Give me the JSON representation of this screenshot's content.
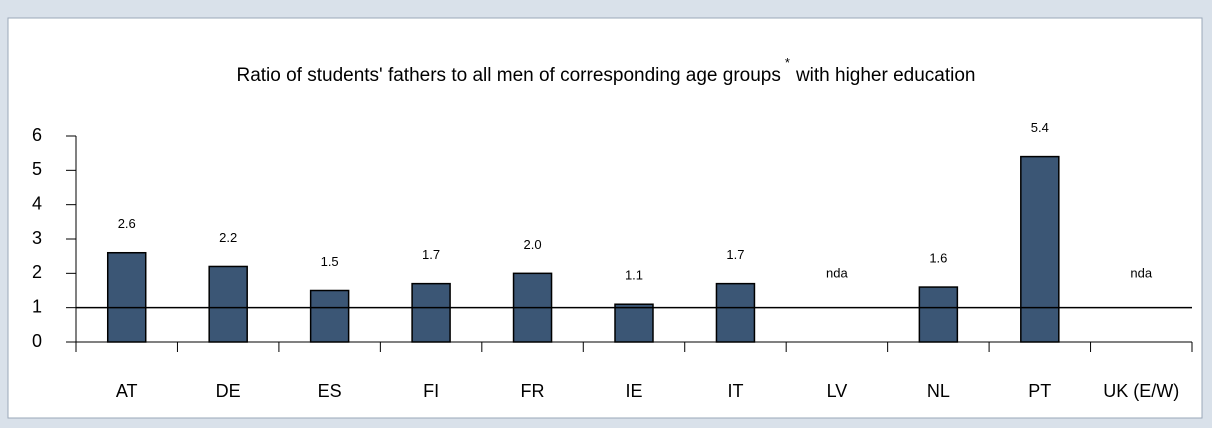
{
  "chart_data": {
    "type": "bar",
    "title_parts": [
      "Ratio of students' fathers to all men of corresponding age groups",
      "*",
      "with higher education"
    ],
    "categories": [
      "AT",
      "DE",
      "ES",
      "FI",
      "FR",
      "IE",
      "IT",
      "LV",
      "NL",
      "PT",
      "UK (E/W)"
    ],
    "values": [
      2.6,
      2.2,
      1.5,
      1.7,
      2.0,
      1.1,
      1.7,
      null,
      1.6,
      5.4,
      null
    ],
    "value_labels": [
      "2.6",
      "2.2",
      "1.5",
      "1.7",
      "2.0",
      "1.1",
      "1.7",
      "nda",
      "1.6",
      "5.4",
      "nda"
    ],
    "color": "#3b5675",
    "reference_line": 1,
    "ylim": [
      0,
      6
    ],
    "yticks": [
      0,
      1,
      2,
      3,
      4,
      5,
      6
    ]
  }
}
